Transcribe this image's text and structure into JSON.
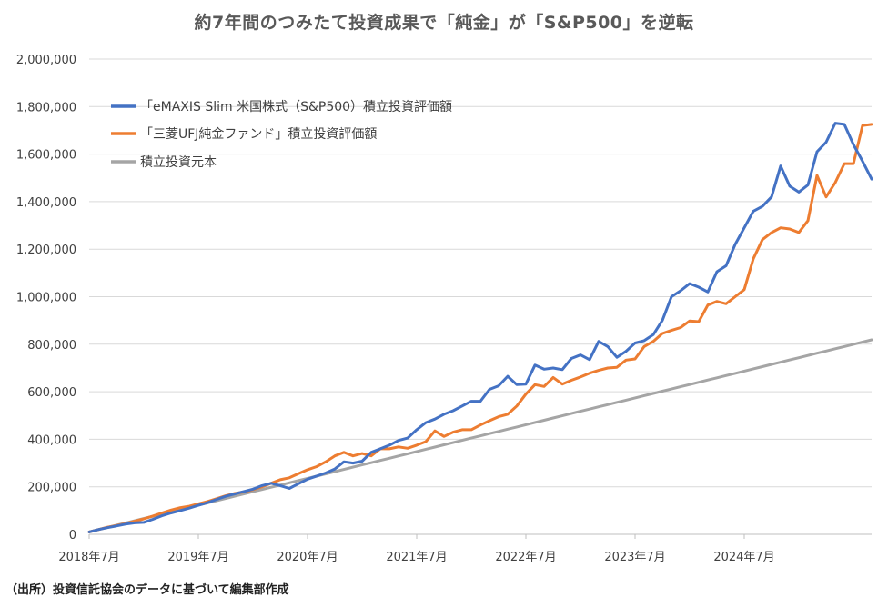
{
  "source_note": "（出所）投資信託協会のデータに基づいて編集部作成",
  "chart_data": {
    "type": "line",
    "title": "約7年間のつみたて投資成果で「純金」が「S&P500」を逆転",
    "xlabel": "",
    "ylabel": "",
    "ylim": [
      0,
      2000000
    ],
    "yticks": [
      0,
      200000,
      400000,
      600000,
      800000,
      1000000,
      1200000,
      1400000,
      1600000,
      1800000,
      2000000
    ],
    "ytick_labels": [
      "0",
      "200,000",
      "400,000",
      "600,000",
      "800,000",
      "1,000,000",
      "1,200,000",
      "1,400,000",
      "1,600,000",
      "1,800,000",
      "2,000,000"
    ],
    "x_start": "2018年7月",
    "x_end": "2025年3月",
    "xtick_labels": [
      "2018年7月",
      "2019年7月",
      "2020年7月",
      "2021年7月",
      "2022年7月",
      "2023年7月",
      "2024年7月"
    ],
    "grid": "horizontal",
    "legend_position": "top-left",
    "series": [
      {
        "name": "「eMAXIS Slim 米国株式（S&P500）積立投資評価額",
        "color": "#4472C4",
        "values": [
          10000,
          20000,
          28000,
          35000,
          43000,
          48000,
          50000,
          63000,
          78000,
          90000,
          100000,
          110000,
          122000,
          133000,
          147000,
          160000,
          170000,
          180000,
          190000,
          205000,
          215000,
          205000,
          193000,
          213000,
          232000,
          245000,
          258000,
          275000,
          305000,
          300000,
          308000,
          345000,
          360000,
          375000,
          395000,
          405000,
          440000,
          470000,
          485000,
          505000,
          520000,
          540000,
          560000,
          560000,
          610000,
          625000,
          665000,
          630000,
          632000,
          712000,
          695000,
          700000,
          693000,
          740000,
          755000,
          735000,
          812000,
          790000,
          745000,
          770000,
          805000,
          815000,
          840000,
          900000,
          1000000,
          1025000,
          1055000,
          1040000,
          1020000,
          1105000,
          1130000,
          1220000,
          1290000,
          1360000,
          1380000,
          1420000,
          1550000,
          1465000,
          1440000,
          1470000,
          1610000,
          1650000,
          1730000,
          1725000,
          1640000,
          1570000,
          1495000
        ]
      },
      {
        "name": "「三菱UFJ純金ファンド」積立投資評価額",
        "color": "#ED7D31",
        "values": [
          10000,
          20000,
          30000,
          37000,
          45000,
          55000,
          65000,
          77000,
          90000,
          102000,
          112000,
          118000,
          128000,
          138000,
          150000,
          162000,
          172000,
          178000,
          188000,
          200000,
          215000,
          230000,
          238000,
          255000,
          272000,
          285000,
          305000,
          330000,
          345000,
          330000,
          340000,
          330000,
          360000,
          360000,
          368000,
          362000,
          375000,
          390000,
          435000,
          412000,
          430000,
          440000,
          440000,
          460000,
          478000,
          495000,
          505000,
          540000,
          590000,
          630000,
          622000,
          660000,
          632000,
          648000,
          662000,
          678000,
          690000,
          700000,
          703000,
          733000,
          738000,
          790000,
          812000,
          845000,
          858000,
          870000,
          898000,
          895000,
          965000,
          980000,
          970000,
          1000000,
          1030000,
          1160000,
          1240000,
          1270000,
          1290000,
          1285000,
          1270000,
          1320000,
          1510000,
          1420000,
          1480000,
          1560000,
          1560000,
          1720000,
          1725000
        ]
      },
      {
        "name": "積立投資元本",
        "color": "#A5A5A5",
        "values": [
          10000,
          19400,
          28800,
          38200,
          47600,
          57000,
          66400,
          75800,
          85200,
          94600,
          104000,
          113400,
          122800,
          132200,
          141600,
          151000,
          160400,
          169800,
          179200,
          188600,
          198000,
          207400,
          216800,
          226200,
          235600,
          245000,
          254400,
          263800,
          273200,
          282600,
          292000,
          301400,
          310800,
          320200,
          329600,
          339000,
          348400,
          357800,
          367200,
          376600,
          386000,
          395400,
          404800,
          414200,
          423600,
          433000,
          442400,
          451800,
          461200,
          470600,
          480000,
          489400,
          498800,
          508200,
          517600,
          527000,
          536400,
          545800,
          555200,
          564600,
          574000,
          583400,
          592800,
          602200,
          611600,
          621000,
          630400,
          639800,
          649200,
          658600,
          668000,
          677400,
          686800,
          696200,
          705600,
          715000,
          724400,
          733800,
          743200,
          752600,
          762000,
          771400,
          780800,
          790200,
          799600,
          809000,
          818400
        ]
      }
    ]
  }
}
